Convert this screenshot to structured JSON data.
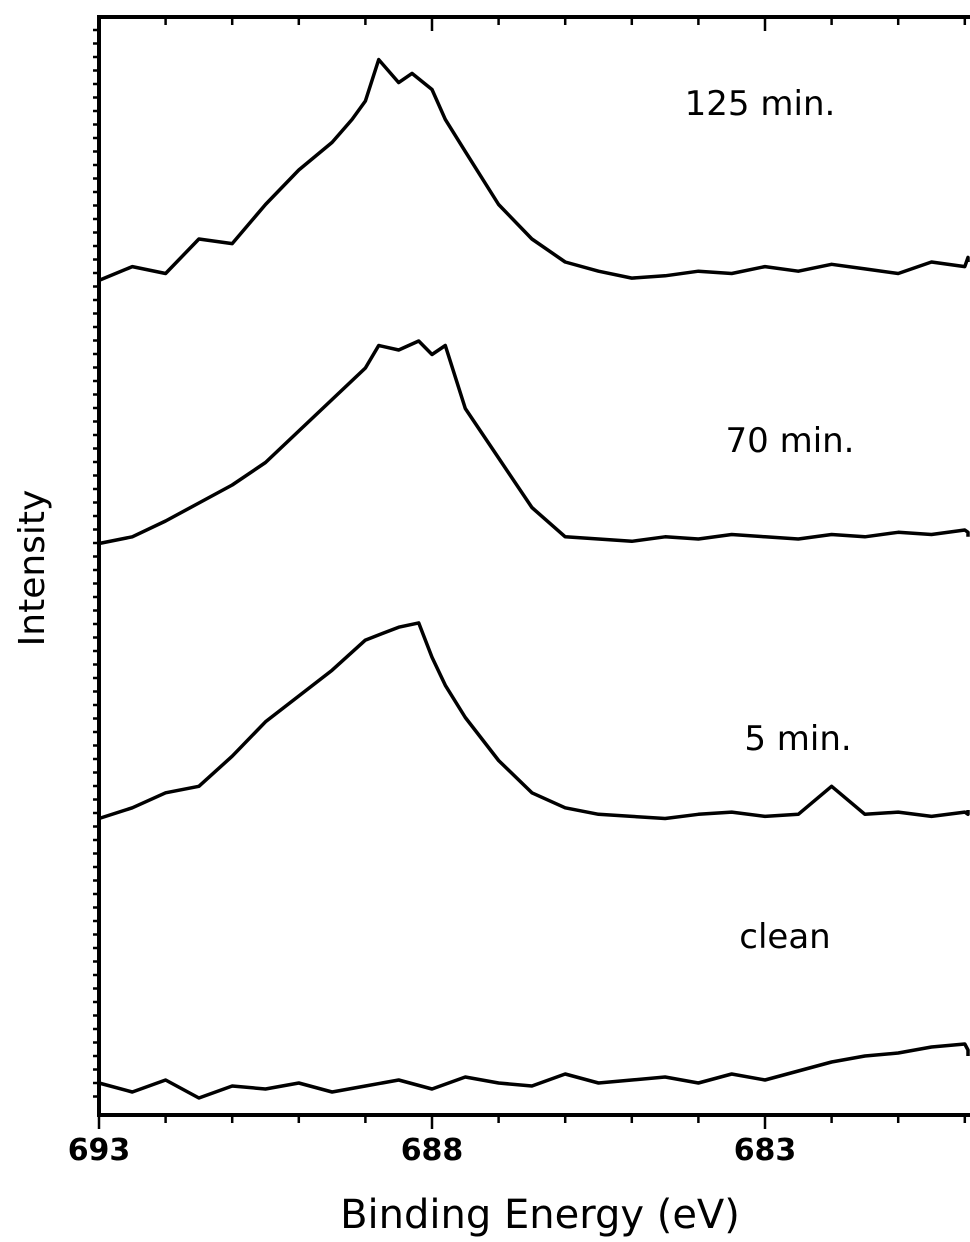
{
  "chart_data": {
    "type": "line",
    "title": "",
    "xlabel": "Binding Energy (eV)",
    "ylabel": "Intensity",
    "x_reversed": true,
    "xlim": [
      693,
      679.2
    ],
    "x_ticks": [
      693,
      688,
      683
    ],
    "grid": false,
    "series_labels_on_chart": true,
    "series": [
      {
        "name": "125 min.",
        "x": [
          693.0,
          692.5,
          692.0,
          691.5,
          691.0,
          690.5,
          690.0,
          689.5,
          689.2,
          689.0,
          688.8,
          688.5,
          688.3,
          688.0,
          687.8,
          687.5,
          687.0,
          686.5,
          686.0,
          685.5,
          685.0,
          684.5,
          684.0,
          683.5,
          683.0,
          682.5,
          682.0,
          681.5,
          681.0,
          680.5,
          680.0,
          679.5,
          679.2
        ],
        "y": [
          0.02,
          0.08,
          0.05,
          0.2,
          0.18,
          0.35,
          0.5,
          0.62,
          0.72,
          0.8,
          0.98,
          0.88,
          0.92,
          0.85,
          0.72,
          0.58,
          0.35,
          0.2,
          0.1,
          0.06,
          0.03,
          0.04,
          0.06,
          0.05,
          0.08,
          0.06,
          0.09,
          0.07,
          0.05,
          0.1,
          0.08,
          0.12,
          0.1
        ]
      },
      {
        "name": "70 min.",
        "x": [
          693.0,
          692.5,
          692.0,
          691.5,
          691.0,
          690.5,
          690.0,
          689.5,
          689.0,
          688.8,
          688.5,
          688.2,
          688.0,
          687.8,
          687.5,
          687.0,
          686.5,
          686.0,
          685.5,
          685.0,
          684.5,
          684.0,
          683.5,
          683.0,
          682.5,
          682.0,
          681.5,
          681.0,
          680.5,
          680.0,
          679.5,
          679.2
        ],
        "y": [
          0.02,
          0.05,
          0.12,
          0.2,
          0.28,
          0.38,
          0.52,
          0.66,
          0.8,
          0.9,
          0.88,
          0.92,
          0.86,
          0.9,
          0.62,
          0.4,
          0.18,
          0.05,
          0.04,
          0.03,
          0.05,
          0.04,
          0.06,
          0.05,
          0.04,
          0.06,
          0.05,
          0.07,
          0.06,
          0.08,
          0.07,
          0.05
        ]
      },
      {
        "name": "5 min.",
        "x": [
          693.0,
          692.5,
          692.0,
          691.5,
          691.0,
          690.5,
          690.0,
          689.5,
          689.0,
          688.5,
          688.2,
          688.0,
          687.8,
          687.5,
          687.0,
          686.5,
          686.0,
          685.5,
          685.0,
          684.5,
          684.0,
          683.5,
          683.0,
          682.5,
          682.0,
          681.5,
          681.0,
          680.5,
          680.0,
          679.5,
          679.2
        ],
        "y": [
          0.03,
          0.08,
          0.15,
          0.18,
          0.32,
          0.48,
          0.6,
          0.72,
          0.86,
          0.92,
          0.94,
          0.78,
          0.65,
          0.5,
          0.3,
          0.15,
          0.08,
          0.05,
          0.04,
          0.03,
          0.05,
          0.06,
          0.04,
          0.05,
          0.18,
          0.05,
          0.06,
          0.04,
          0.06,
          0.05,
          0.07
        ]
      },
      {
        "name": "clean",
        "x": [
          693.0,
          692.5,
          692.0,
          691.5,
          691.0,
          690.5,
          690.0,
          689.5,
          689.0,
          688.5,
          688.0,
          687.5,
          687.0,
          686.5,
          686.0,
          685.5,
          685.0,
          684.5,
          684.0,
          683.5,
          683.0,
          682.5,
          682.0,
          681.5,
          681.0,
          680.5,
          680.0,
          679.5,
          679.2
        ],
        "y": [
          0.05,
          0.02,
          0.06,
          0.0,
          0.04,
          0.03,
          0.05,
          0.02,
          0.04,
          0.06,
          0.03,
          0.07,
          0.05,
          0.04,
          0.08,
          0.05,
          0.06,
          0.07,
          0.05,
          0.08,
          0.06,
          0.09,
          0.12,
          0.14,
          0.15,
          0.17,
          0.18,
          0.16,
          0.14
        ]
      }
    ]
  }
}
